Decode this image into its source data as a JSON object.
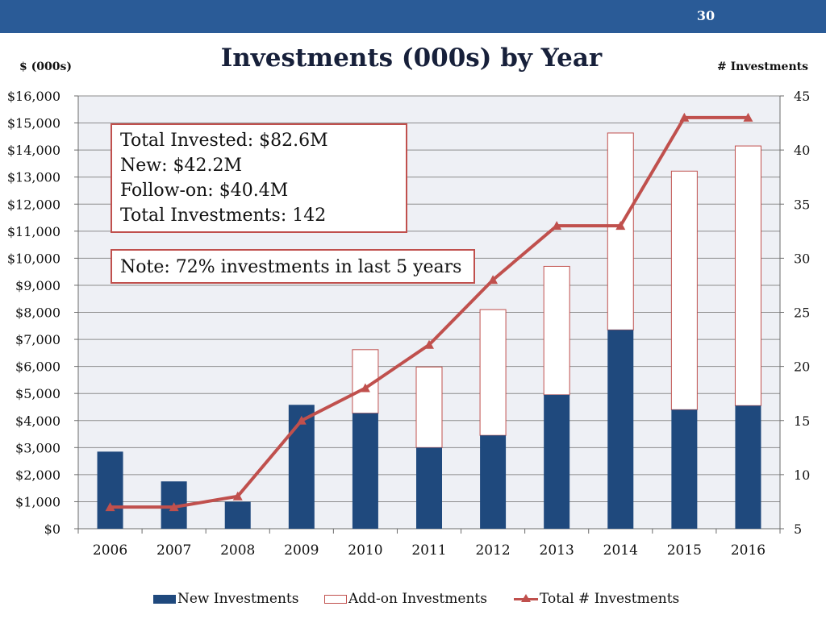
{
  "slide": {
    "number": "30"
  },
  "header": {
    "title": "Investments (000s) by Year",
    "left_axis_title": "$ (000s)",
    "right_axis_title": "# Investments"
  },
  "callouts": {
    "summary": [
      "Total Invested: $82.6M",
      "New: $42.2M",
      "Follow-on: $40.4M",
      "Total Investments: 142"
    ],
    "note": "Note: 72% investments in last 5 years"
  },
  "legend": {
    "new": "New Investments",
    "addon": "Add-on Investments",
    "total": "Total # Investments"
  },
  "colors": {
    "new": "#1f497d",
    "addon_border": "#c0504d",
    "line": "#c0504d",
    "header_bar": "#2a5b97"
  },
  "chart_data": {
    "type": "bar",
    "title": "Investments (000s) by Year",
    "ylabel": "$ (000s)",
    "y2label": "# Investments",
    "categories": [
      "2006",
      "2007",
      "2008",
      "2009",
      "2010",
      "2011",
      "2012",
      "2013",
      "2014",
      "2015",
      "2016"
    ],
    "ylim": [
      0,
      16000
    ],
    "y2lim": [
      5,
      45
    ],
    "y_ticks": [
      "$0",
      "$1,000",
      "$2,000",
      "$3,000",
      "$4,000",
      "$5,000",
      "$6,000",
      "$7,000",
      "$8,000",
      "$9,000",
      "$10,000",
      "$11,000",
      "$12,000",
      "$13,000",
      "$14,000",
      "$15,000",
      "$16,000"
    ],
    "y2_ticks": [
      "5",
      "10",
      "15",
      "20",
      "25",
      "30",
      "35",
      "40",
      "45"
    ],
    "series": [
      {
        "name": "New Investments",
        "kind": "stacked-bar",
        "values": [
          2850,
          1750,
          1000,
          4580,
          4270,
          3000,
          3450,
          4950,
          7350,
          4400,
          4550
        ]
      },
      {
        "name": "Add-on Investments",
        "kind": "stacked-bar",
        "values": [
          0,
          0,
          0,
          0,
          2350,
          2980,
          4650,
          4750,
          7280,
          8820,
          9600
        ]
      },
      {
        "name": "Total # Investments",
        "kind": "line",
        "axis": "right",
        "values": [
          7,
          7,
          8,
          15,
          18,
          22,
          28,
          33,
          33,
          43,
          43
        ]
      }
    ],
    "legend_position": "bottom"
  }
}
